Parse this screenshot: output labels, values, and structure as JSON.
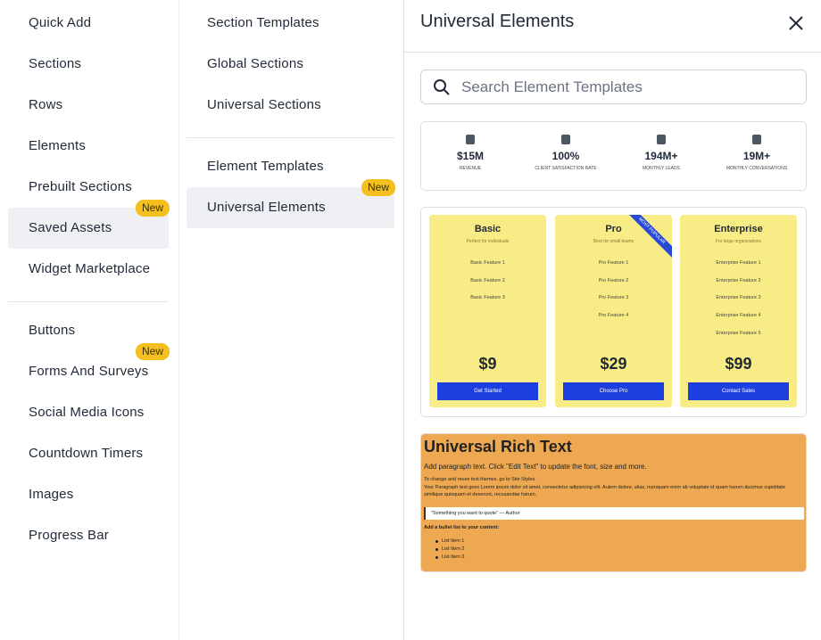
{
  "left_menu": {
    "groups": [
      {
        "items": [
          {
            "label": "Quick Add"
          },
          {
            "label": "Sections"
          },
          {
            "label": "Rows"
          },
          {
            "label": "Elements"
          },
          {
            "label": "Prebuilt Sections"
          },
          {
            "label": "Saved Assets",
            "badge": "New",
            "selected": true
          },
          {
            "label": "Widget Marketplace"
          }
        ]
      },
      {
        "items": [
          {
            "label": "Buttons"
          },
          {
            "label": "Forms And Surveys",
            "badge": "New"
          },
          {
            "label": "Social Media Icons"
          },
          {
            "label": "Countdown Timers"
          },
          {
            "label": "Images"
          },
          {
            "label": "Progress Bar"
          }
        ]
      }
    ]
  },
  "sub_menu": {
    "groups": [
      {
        "items": [
          {
            "label": "Section Templates"
          },
          {
            "label": "Global Sections"
          },
          {
            "label": "Universal Sections"
          }
        ]
      },
      {
        "items": [
          {
            "label": "Element Templates"
          },
          {
            "label": "Universal Elements",
            "badge": "New",
            "selected": true
          }
        ]
      }
    ]
  },
  "panel": {
    "title": "Universal Elements",
    "search_placeholder": "Search Element Templates",
    "stats_template": {
      "stats": [
        {
          "value": "$15M",
          "label": "REVENUE"
        },
        {
          "value": "100%",
          "label": "CLIENT SATISFACTION RATE"
        },
        {
          "value": "194M+",
          "label": "MONTHLY LEADS"
        },
        {
          "value": "19M+",
          "label": "MONTHLY CONVERSATIONS"
        }
      ]
    },
    "pricing_template": {
      "plans": [
        {
          "name": "Basic",
          "tagline": "Perfect for individuals",
          "features": [
            "Basic Feature 1",
            "Basic Feature 2",
            "Basic Feature 3"
          ],
          "price": "$9",
          "button": "Get Started"
        },
        {
          "name": "Pro",
          "tagline": "Best for small teams",
          "features": [
            "Pro Feature 1",
            "Pro Feature 2",
            "Pro Feature 3",
            "Pro Feature 4"
          ],
          "price": "$29",
          "button": "Choose Pro",
          "ribbon": "MOST POPULAR"
        },
        {
          "name": "Enterprise",
          "tagline": "For large organizations",
          "features": [
            "Enterprise Feature 1",
            "Enterprise Feature 2",
            "Enterprise Feature 3",
            "Enterprise Feature 4",
            "Enterprise Feature 5"
          ],
          "price": "$99",
          "button": "Contact Sales"
        }
      ]
    },
    "rich_text_template": {
      "title": "Universal Rich Text",
      "intro": "Add paragraph text. Click \"Edit Text\" to update the font, size and more.",
      "paragraph_1": "To change and reuse text themes, go to Site Styles.",
      "paragraph_2": "Your Paragraph text goes Lorem ipsum dolor sit amet, consectetur adipisicing elit. Autem dolore, alias, numquam enim ab voluptate id quam harum ducimus cupiditate similique quisquam et deserunt, recusandae harum.",
      "quote": "\"Something you want to quote\" — Author",
      "list_heading": "Add a bullet list to your content:",
      "list_items": [
        "List Item 1",
        "List Item 2",
        "List Item 3"
      ]
    }
  }
}
